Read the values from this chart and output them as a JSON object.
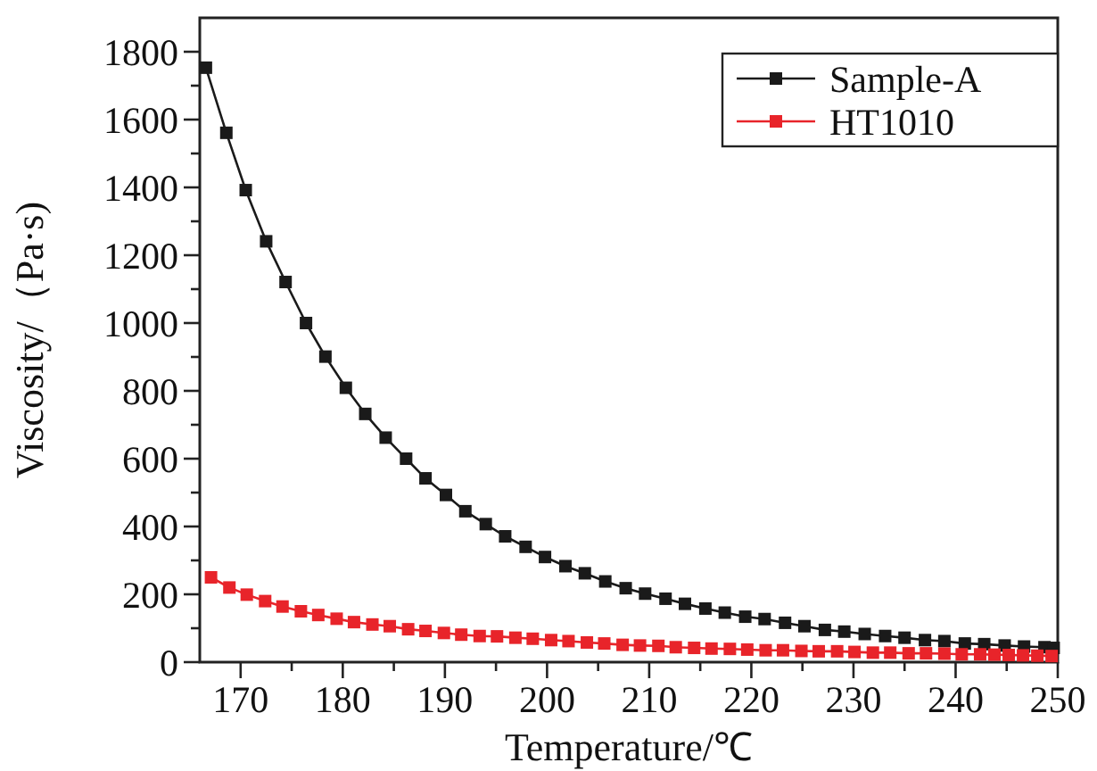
{
  "chart_data": {
    "type": "line",
    "xlabel": "Temperature/℃",
    "ylabel": "Viscosity/（Pa·s)",
    "xlim": [
      166,
      250
    ],
    "ylim": [
      0,
      1900
    ],
    "xticks": [
      170,
      {
        "value": 175,
        "label": null
      },
      180,
      {
        "value": 185,
        "label": null
      },
      190,
      {
        "value": 195,
        "label": null
      },
      200,
      {
        "value": 205,
        "label": null
      },
      210,
      {
        "value": 215,
        "label": null
      },
      220,
      {
        "value": 225,
        "label": null
      },
      230,
      {
        "value": 235,
        "label": null
      },
      240,
      {
        "value": 245,
        "label": null
      },
      250
    ],
    "yticks": [
      0,
      {
        "value": 100,
        "label": null
      },
      200,
      {
        "value": 300,
        "label": null
      },
      400,
      {
        "value": 500,
        "label": null
      },
      600,
      {
        "value": 700,
        "label": null
      },
      800,
      {
        "value": 900,
        "label": null
      },
      1000,
      {
        "value": 1100,
        "label": null
      },
      1200,
      {
        "value": 1300,
        "label": null
      },
      1400,
      {
        "value": 1500,
        "label": null
      },
      1600,
      {
        "value": 1700,
        "label": null
      },
      1800
    ],
    "marker": "square",
    "legend": "top right",
    "grid": false,
    "series": [
      {
        "name": "Sample-A",
        "color": "#1a1a1a",
        "x": [
          166.6,
          168.6,
          170.5,
          172.5,
          174.4,
          176.4,
          178.3,
          180.3,
          182.2,
          184.2,
          186.2,
          188.1,
          190.1,
          192.0,
          194.0,
          195.9,
          197.9,
          199.8,
          201.8,
          203.7,
          205.7,
          207.7,
          209.6,
          211.6,
          213.5,
          215.5,
          217.4,
          219.4,
          221.3,
          223.3,
          225.2,
          227.2,
          229.1,
          231.1,
          233.1,
          235.0,
          237.0,
          238.9,
          240.9,
          242.8,
          244.8,
          246.7,
          248.7,
          249.6
        ],
        "values": [
          1753,
          1561,
          1392,
          1241,
          1121,
          1000,
          901,
          809,
          732,
          662,
          600,
          542,
          493,
          445,
          407,
          371,
          340,
          310,
          283,
          262,
          238,
          218,
          202,
          187,
          172,
          158,
          146,
          134,
          127,
          116,
          106,
          95,
          90,
          83,
          77,
          72,
          65,
          62,
          55,
          53,
          49,
          46,
          44,
          42
        ]
      },
      {
        "name": "HT1010",
        "color": "#e8242a",
        "x": [
          167.1,
          168.9,
          170.6,
          172.4,
          174.1,
          175.9,
          177.6,
          179.4,
          181.1,
          182.9,
          184.6,
          186.4,
          188.1,
          189.9,
          191.6,
          193.4,
          195.1,
          196.9,
          198.6,
          200.4,
          202.1,
          203.9,
          205.6,
          207.4,
          209.1,
          210.9,
          212.6,
          214.4,
          216.1,
          217.9,
          219.6,
          221.4,
          223.1,
          224.9,
          226.6,
          228.4,
          230.1,
          231.9,
          233.6,
          235.4,
          237.1,
          238.9,
          240.6,
          242.4,
          243.8,
          245.2,
          246.6,
          248.0,
          249.4
        ],
        "values": [
          250,
          220,
          199,
          180,
          164,
          150,
          139,
          128,
          118,
          111,
          106,
          97,
          92,
          86,
          81,
          77,
          76,
          72,
          69,
          65,
          62,
          58,
          55,
          51,
          49,
          48,
          44,
          42,
          40,
          39,
          37,
          35,
          35,
          33,
          32,
          32,
          30,
          28,
          28,
          26,
          26,
          25,
          23,
          23,
          22,
          21,
          20,
          19,
          18
        ]
      }
    ]
  }
}
